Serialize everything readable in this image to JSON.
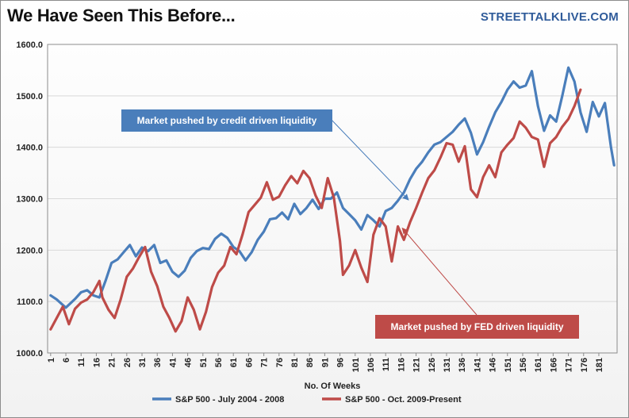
{
  "header": {
    "title": "We Have Seen This Before...",
    "brand": "STREETTALKLIVE.COM"
  },
  "colors": {
    "series1": "#4a7ebb",
    "series2": "#be4b48",
    "grid": "#d9d9d9"
  },
  "chart_data": {
    "type": "line",
    "title": "We Have Seen This Before...",
    "xlabel": "No. Of Weeks",
    "ylabel": "",
    "ylim": [
      1000,
      1600
    ],
    "yticks": [
      1000,
      1100,
      1200,
      1300,
      1400,
      1500,
      1600
    ],
    "ytick_labels": [
      "1000.0",
      "1100.0",
      "1200.0",
      "1300.0",
      "1400.0",
      "1500.0",
      "1600.0"
    ],
    "xlim": [
      1,
      186
    ],
    "xticks": [
      1,
      6,
      11,
      16,
      21,
      26,
      31,
      36,
      41,
      46,
      51,
      56,
      61,
      66,
      71,
      76,
      81,
      86,
      91,
      96,
      101,
      106,
      111,
      116,
      121,
      126,
      131,
      136,
      141,
      146,
      151,
      156,
      161,
      166,
      171,
      176,
      181
    ],
    "grid": true,
    "legend": "bottom",
    "series": [
      {
        "name": "S&P 500 - July 2004 - 2008",
        "points": [
          [
            1,
            1112
          ],
          [
            3,
            1104
          ],
          [
            6,
            1088
          ],
          [
            9,
            1105
          ],
          [
            11,
            1118
          ],
          [
            13,
            1122
          ],
          [
            15,
            1112
          ],
          [
            17,
            1108
          ],
          [
            19,
            1140
          ],
          [
            21,
            1175
          ],
          [
            23,
            1182
          ],
          [
            25,
            1196
          ],
          [
            27,
            1210
          ],
          [
            29,
            1188
          ],
          [
            31,
            1205
          ],
          [
            33,
            1198
          ],
          [
            35,
            1210
          ],
          [
            37,
            1175
          ],
          [
            39,
            1180
          ],
          [
            41,
            1158
          ],
          [
            43,
            1148
          ],
          [
            45,
            1160
          ],
          [
            47,
            1185
          ],
          [
            49,
            1198
          ],
          [
            51,
            1204
          ],
          [
            53,
            1202
          ],
          [
            55,
            1222
          ],
          [
            57,
            1232
          ],
          [
            59,
            1224
          ],
          [
            61,
            1206
          ],
          [
            63,
            1198
          ],
          [
            65,
            1180
          ],
          [
            67,
            1196
          ],
          [
            69,
            1220
          ],
          [
            71,
            1236
          ],
          [
            73,
            1260
          ],
          [
            75,
            1262
          ],
          [
            77,
            1273
          ],
          [
            79,
            1260
          ],
          [
            81,
            1290
          ],
          [
            83,
            1270
          ],
          [
            85,
            1282
          ],
          [
            87,
            1298
          ],
          [
            89,
            1280
          ],
          [
            91,
            1300
          ],
          [
            93,
            1300
          ],
          [
            95,
            1312
          ],
          [
            97,
            1282
          ],
          [
            99,
            1270
          ],
          [
            101,
            1258
          ],
          [
            103,
            1240
          ],
          [
            105,
            1268
          ],
          [
            107,
            1258
          ],
          [
            109,
            1246
          ],
          [
            111,
            1276
          ],
          [
            113,
            1282
          ],
          [
            115,
            1296
          ],
          [
            117,
            1312
          ],
          [
            119,
            1338
          ],
          [
            121,
            1358
          ],
          [
            123,
            1372
          ],
          [
            125,
            1390
          ],
          [
            127,
            1405
          ],
          [
            129,
            1410
          ],
          [
            131,
            1420
          ],
          [
            133,
            1430
          ],
          [
            135,
            1444
          ],
          [
            137,
            1456
          ],
          [
            139,
            1428
          ],
          [
            141,
            1386
          ],
          [
            143,
            1410
          ],
          [
            145,
            1440
          ],
          [
            147,
            1468
          ],
          [
            149,
            1488
          ],
          [
            151,
            1512
          ],
          [
            153,
            1528
          ],
          [
            155,
            1516
          ],
          [
            157,
            1520
          ],
          [
            159,
            1548
          ],
          [
            161,
            1480
          ],
          [
            163,
            1432
          ],
          [
            165,
            1462
          ],
          [
            167,
            1450
          ],
          [
            169,
            1500
          ],
          [
            171,
            1555
          ],
          [
            173,
            1528
          ],
          [
            175,
            1468
          ],
          [
            177,
            1430
          ],
          [
            179,
            1488
          ],
          [
            181,
            1460
          ],
          [
            183,
            1486
          ],
          [
            185,
            1400
          ],
          [
            186,
            1365
          ]
        ]
      },
      {
        "name": "S&P 500 - Oct. 2009-Present",
        "points": [
          [
            1,
            1046
          ],
          [
            3,
            1068
          ],
          [
            5,
            1090
          ],
          [
            7,
            1056
          ],
          [
            9,
            1086
          ],
          [
            11,
            1098
          ],
          [
            13,
            1104
          ],
          [
            15,
            1118
          ],
          [
            17,
            1140
          ],
          [
            18,
            1108
          ],
          [
            20,
            1084
          ],
          [
            22,
            1068
          ],
          [
            24,
            1104
          ],
          [
            26,
            1148
          ],
          [
            28,
            1164
          ],
          [
            30,
            1186
          ],
          [
            32,
            1206
          ],
          [
            34,
            1158
          ],
          [
            36,
            1130
          ],
          [
            38,
            1090
          ],
          [
            40,
            1068
          ],
          [
            42,
            1042
          ],
          [
            44,
            1062
          ],
          [
            46,
            1108
          ],
          [
            48,
            1084
          ],
          [
            50,
            1046
          ],
          [
            52,
            1080
          ],
          [
            54,
            1128
          ],
          [
            56,
            1156
          ],
          [
            58,
            1170
          ],
          [
            60,
            1206
          ],
          [
            62,
            1192
          ],
          [
            64,
            1230
          ],
          [
            66,
            1274
          ],
          [
            68,
            1288
          ],
          [
            70,
            1302
          ],
          [
            72,
            1332
          ],
          [
            74,
            1298
          ],
          [
            76,
            1304
          ],
          [
            78,
            1326
          ],
          [
            80,
            1344
          ],
          [
            82,
            1330
          ],
          [
            84,
            1354
          ],
          [
            86,
            1340
          ],
          [
            88,
            1306
          ],
          [
            90,
            1282
          ],
          [
            92,
            1340
          ],
          [
            94,
            1302
          ],
          [
            96,
            1218
          ],
          [
            97,
            1152
          ],
          [
            99,
            1170
          ],
          [
            101,
            1200
          ],
          [
            103,
            1166
          ],
          [
            105,
            1138
          ],
          [
            107,
            1230
          ],
          [
            109,
            1262
          ],
          [
            111,
            1246
          ],
          [
            113,
            1178
          ],
          [
            115,
            1246
          ],
          [
            117,
            1220
          ],
          [
            119,
            1254
          ],
          [
            121,
            1282
          ],
          [
            123,
            1312
          ],
          [
            125,
            1340
          ],
          [
            127,
            1355
          ],
          [
            129,
            1380
          ],
          [
            131,
            1408
          ],
          [
            133,
            1405
          ],
          [
            135,
            1372
          ],
          [
            137,
            1402
          ],
          [
            139,
            1318
          ],
          [
            141,
            1303
          ],
          [
            143,
            1342
          ],
          [
            145,
            1365
          ],
          [
            147,
            1342
          ],
          [
            149,
            1390
          ],
          [
            151,
            1405
          ],
          [
            153,
            1418
          ],
          [
            155,
            1450
          ],
          [
            157,
            1438
          ],
          [
            159,
            1420
          ],
          [
            161,
            1415
          ],
          [
            163,
            1362
          ],
          [
            165,
            1408
          ],
          [
            167,
            1420
          ],
          [
            169,
            1440
          ],
          [
            171,
            1455
          ],
          [
            173,
            1480
          ],
          [
            175,
            1512
          ]
        ]
      }
    ],
    "annotations": [
      {
        "text": "Market pushed by credit driven liquidity",
        "target_series": "S&P 500 - July 2004 - 2008",
        "target_x": 119,
        "target_y": 1310
      },
      {
        "text": "Market pushed by FED driven liquidity",
        "target_series": "S&P 500 - Oct. 2009-Present",
        "target_x": 117,
        "target_y": 1255
      }
    ]
  }
}
